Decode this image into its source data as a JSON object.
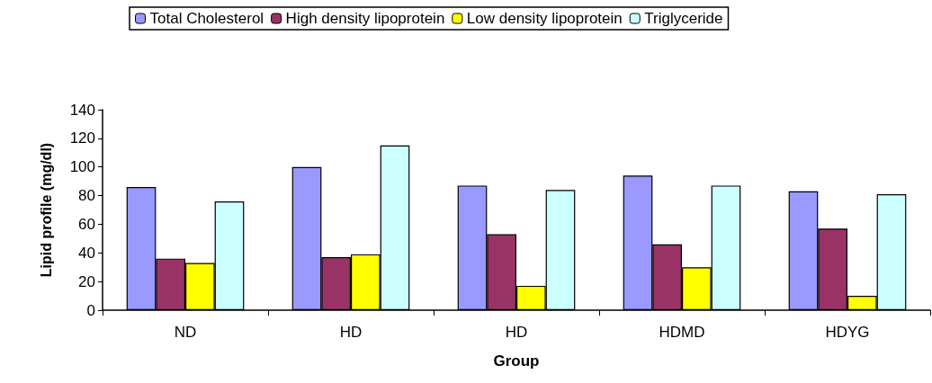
{
  "chart_data": {
    "type": "bar",
    "xlabel": "Group",
    "ylabel": "Lipid profile (mg/dl)",
    "categories": [
      "ND",
      "HD",
      "HD",
      "HDMD",
      "HDYG"
    ],
    "series": [
      {
        "name": "Total Cholesterol",
        "color": "#9999ff",
        "values": [
          86,
          100,
          87,
          94,
          83
        ]
      },
      {
        "name": "High density lipoprotein",
        "color": "#993366",
        "values": [
          36,
          37,
          53,
          46,
          57
        ]
      },
      {
        "name": "Low density lipoprotein",
        "color": "#ffff00",
        "values": [
          33,
          39,
          17,
          30,
          10
        ]
      },
      {
        "name": "Triglyceride",
        "color": "#ccffff",
        "values": [
          76,
          115,
          84,
          87,
          81
        ]
      }
    ],
    "ylim": [
      0,
      140
    ],
    "yticks": [
      0,
      20,
      40,
      60,
      80,
      100,
      120,
      140
    ],
    "grid": false,
    "legend": "top"
  }
}
